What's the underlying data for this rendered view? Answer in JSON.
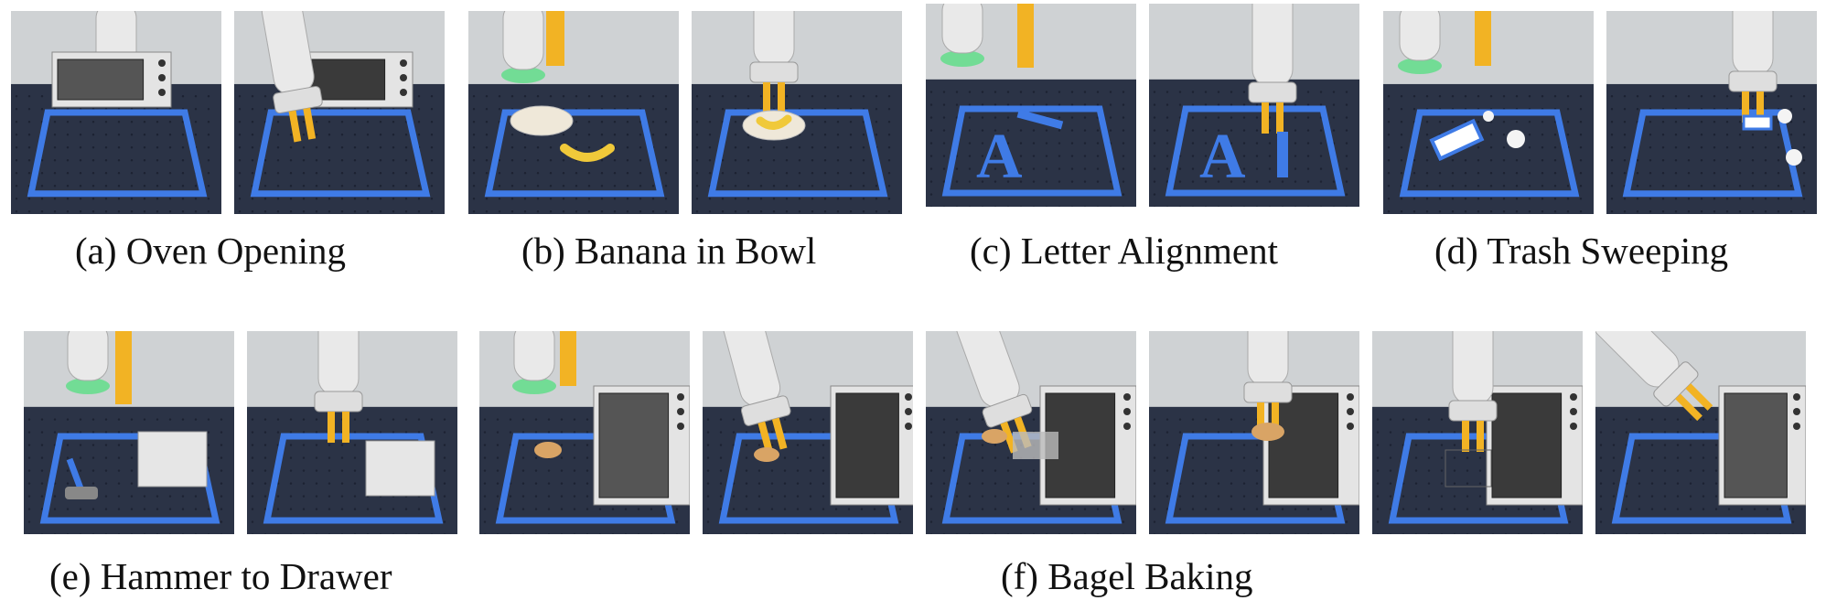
{
  "figure": {
    "captions": {
      "a": "(a) Oven Opening",
      "b": "(b) Banana in Bowl",
      "c": "(c) Letter Alignment",
      "d": "(d) Trash Sweeping",
      "e": "(e) Hammer to Drawer",
      "f": "(f) Bagel Baking"
    },
    "colors": {
      "table": "#2b3346",
      "tape": "#3f7be6",
      "gripper": "#f2b324",
      "robot": "#e9e9e9",
      "wall": "#cfd2d4"
    }
  }
}
